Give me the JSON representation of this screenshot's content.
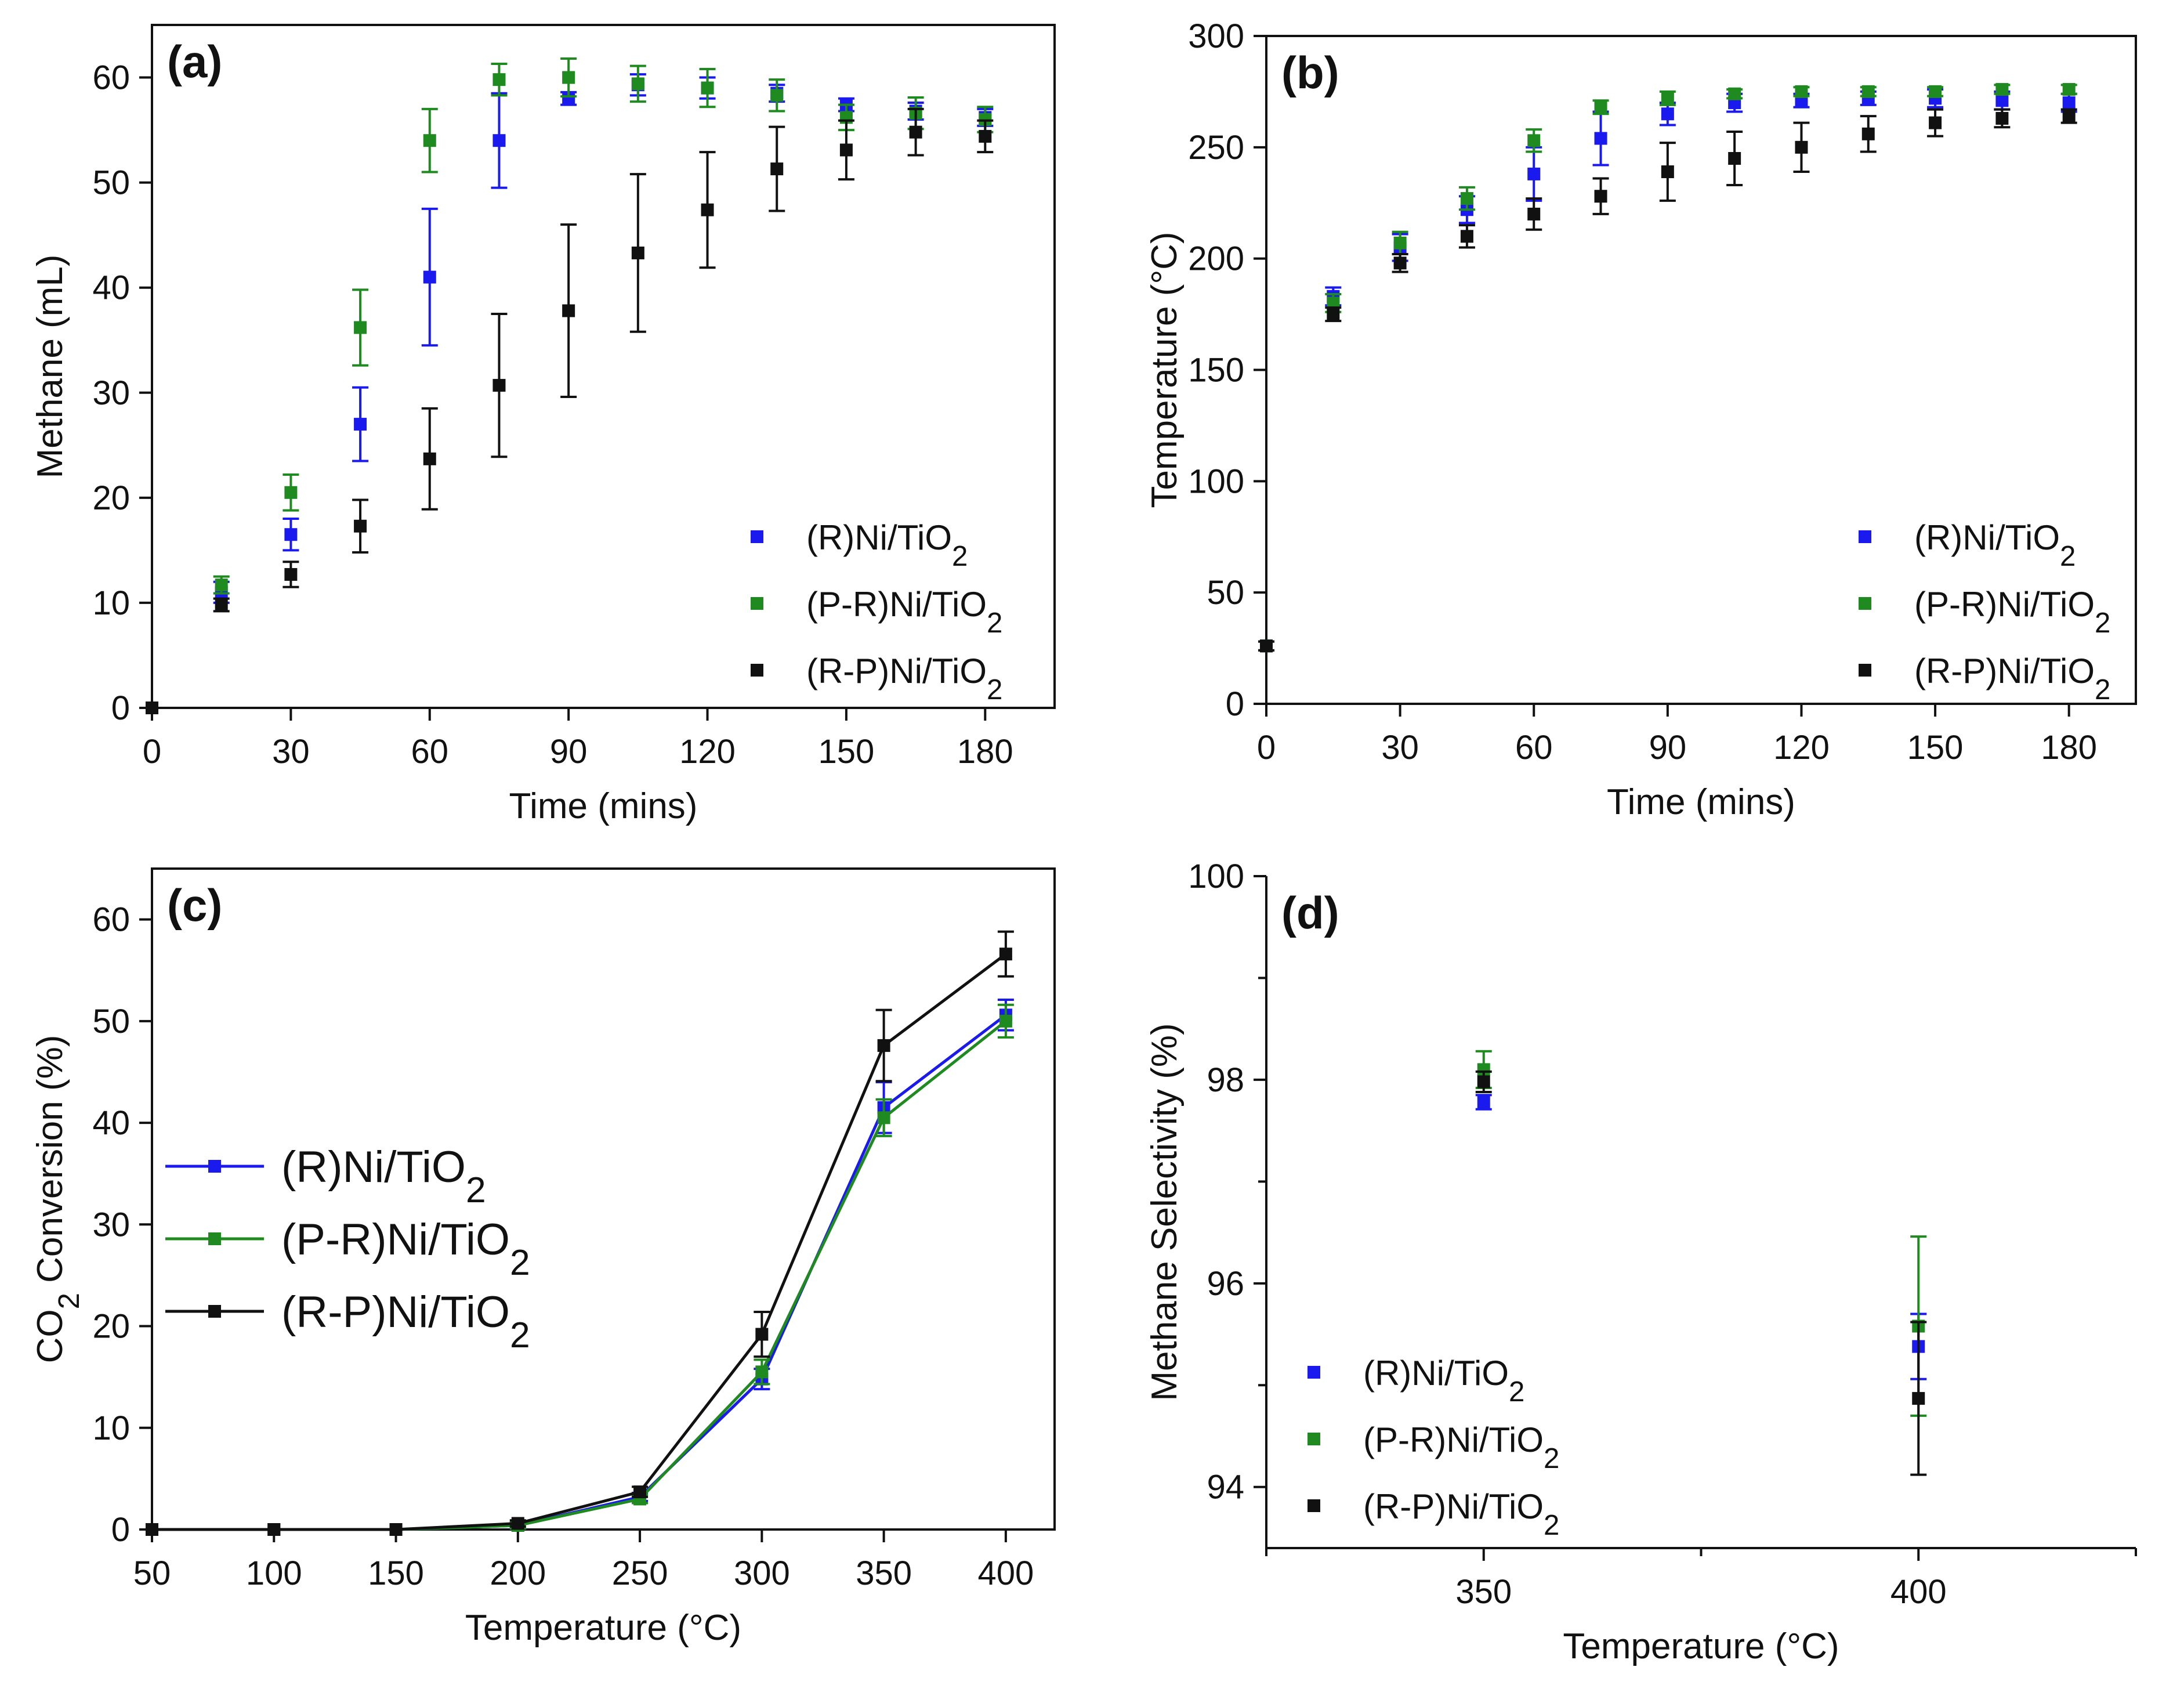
{
  "chart_data": [
    {
      "id": "a",
      "type": "scatter",
      "panel_label": "(a)",
      "xlabel": "Time (mins)",
      "ylabel": "Methane (mL)",
      "xlim": [
        0,
        195
      ],
      "ylim": [
        0,
        65
      ],
      "xticks": [
        0,
        30,
        60,
        90,
        120,
        150,
        180
      ],
      "yticks": [
        0,
        10,
        20,
        30,
        40,
        50,
        60
      ],
      "x": [
        0,
        15,
        30,
        45,
        60,
        75,
        90,
        105,
        120,
        135,
        150,
        165,
        180
      ],
      "legend_position": "bottom-right",
      "series": [
        {
          "name": "(R)Ni/TiO",
          "subscript": "2",
          "color": "#1a1aee",
          "values": [
            0,
            11,
            16.5,
            27,
            41,
            54,
            58,
            59.3,
            59,
            58.5,
            57.4,
            56.8,
            56.2
          ],
          "errors": [
            0,
            1,
            1.5,
            3.5,
            6.5,
            4.5,
            0.6,
            1,
            1,
            0.8,
            0.6,
            0.8,
            0.8
          ]
        },
        {
          "name": "(P-R)Ni/TiO",
          "subscript": "2",
          "color": "#1f8a1f",
          "values": [
            0,
            11.7,
            20.5,
            36.2,
            54,
            59.8,
            60,
            59.4,
            59,
            58.3,
            56.2,
            56.6,
            56
          ],
          "errors": [
            0,
            0.8,
            1.7,
            3.6,
            3,
            1.5,
            1.8,
            1.7,
            1.8,
            1.5,
            1.2,
            1.5,
            1.2
          ]
        },
        {
          "name": "(R-P)Ni/TiO",
          "subscript": "2",
          "color": "#111111",
          "values": [
            0,
            9.8,
            12.7,
            17.3,
            23.7,
            30.7,
            37.8,
            43.3,
            47.4,
            51.3,
            53.1,
            54.8,
            54.4
          ],
          "errors": [
            0,
            0.6,
            1.2,
            2.5,
            4.8,
            6.8,
            8.2,
            7.5,
            5.5,
            4,
            2.8,
            2.2,
            1.5
          ]
        }
      ]
    },
    {
      "id": "b",
      "type": "scatter",
      "panel_label": "(b)",
      "xlabel": "Time (mins)",
      "ylabel": "Temperature (°C)",
      "xlim": [
        0,
        195
      ],
      "ylim": [
        0,
        300
      ],
      "xticks": [
        0,
        30,
        60,
        90,
        120,
        150,
        180
      ],
      "yticks": [
        0,
        50,
        100,
        150,
        200,
        250,
        300
      ],
      "x": [
        0,
        15,
        30,
        45,
        60,
        75,
        90,
        105,
        120,
        135,
        150,
        165,
        180
      ],
      "legend_position": "bottom-right",
      "series": [
        {
          "name": "(R)Ni/TiO",
          "subscript": "2",
          "color": "#1a1aee",
          "values": [
            26,
            183,
            205,
            222,
            238,
            254,
            265,
            270,
            271,
            272,
            272,
            271,
            270
          ],
          "errors": [
            2,
            4,
            6,
            6,
            12,
            12,
            5,
            4,
            3,
            3,
            4,
            4,
            4
          ]
        },
        {
          "name": "(P-R)Ni/TiO",
          "subscript": "2",
          "color": "#1f8a1f",
          "values": [
            26,
            180,
            207,
            227,
            253,
            268,
            272,
            274,
            275,
            275,
            275,
            276,
            276
          ],
          "errors": [
            2,
            4,
            5,
            5,
            5,
            3,
            3,
            2,
            2,
            2,
            2,
            2,
            2
          ]
        },
        {
          "name": "(R-P)Ni/TiO",
          "subscript": "2",
          "color": "#111111",
          "values": [
            26,
            175,
            198,
            210,
            220,
            228,
            239,
            245,
            250,
            256,
            261,
            263,
            264
          ],
          "errors": [
            2,
            3,
            4,
            5,
            7,
            8,
            13,
            12,
            11,
            8,
            6,
            4,
            3
          ]
        }
      ]
    },
    {
      "id": "c",
      "type": "line",
      "panel_label": "(c)",
      "xlabel": "Temperature (°C)",
      "ylabel_prefix": "CO",
      "ylabel_sub": "2",
      "ylabel_suffix": " Conversion (%)",
      "xlim": [
        50,
        420
      ],
      "ylim": [
        0,
        65
      ],
      "xticks": [
        50,
        100,
        150,
        200,
        250,
        300,
        350,
        400
      ],
      "yticks": [
        0,
        10,
        20,
        30,
        40,
        50,
        60
      ],
      "x": [
        50,
        100,
        150,
        200,
        250,
        300,
        350,
        400
      ],
      "legend_position": "middle-left",
      "series": [
        {
          "name": "(R)Ni/TiO",
          "subscript": "2",
          "color": "#1a1aee",
          "values": [
            0,
            0,
            0,
            0.4,
            3.2,
            14.8,
            41.5,
            50.6
          ],
          "errors": [
            0,
            0,
            0,
            0.3,
            0.4,
            1,
            2.5,
            1.5
          ]
        },
        {
          "name": "(P-R)Ni/TiO",
          "subscript": "2",
          "color": "#1f8a1f",
          "values": [
            0,
            0,
            0,
            0.4,
            3,
            15.5,
            40.5,
            50
          ],
          "errors": [
            0,
            0,
            0,
            0.3,
            0.4,
            1.2,
            1.8,
            1.6
          ]
        },
        {
          "name": "(R-P)Ni/TiO",
          "subscript": "2",
          "color": "#111111",
          "values": [
            0,
            0,
            0,
            0.6,
            3.7,
            19.2,
            47.6,
            56.6
          ],
          "errors": [
            0,
            0,
            0,
            0.3,
            0.5,
            2.2,
            3.5,
            2.2
          ]
        }
      ]
    },
    {
      "id": "d",
      "type": "scatter",
      "panel_label": "(d)",
      "xlabel": "Temperature (°C)",
      "ylabel": "Methane Selectivity (%)",
      "xlim": [
        325,
        425
      ],
      "ylim": [
        93.4,
        100
      ],
      "xticks": [
        350,
        400
      ],
      "yticks": [
        94,
        96,
        98,
        100
      ],
      "x": [
        350,
        400
      ],
      "legend_position": "bottom-left",
      "series": [
        {
          "name": "(R)Ni/TiO",
          "subscript": "2",
          "color": "#1a1aee",
          "values": [
            97.78,
            95.38
          ],
          "errors": [
            0.07,
            0.32
          ]
        },
        {
          "name": "(P-R)Ni/TiO",
          "subscript": "2",
          "color": "#1f8a1f",
          "values": [
            98.1,
            95.58
          ],
          "errors": [
            0.18,
            0.88
          ]
        },
        {
          "name": "(R-P)Ni/TiO",
          "subscript": "2",
          "color": "#111111",
          "values": [
            97.98,
            94.87
          ],
          "errors": [
            0.1,
            0.75
          ]
        }
      ]
    }
  ]
}
